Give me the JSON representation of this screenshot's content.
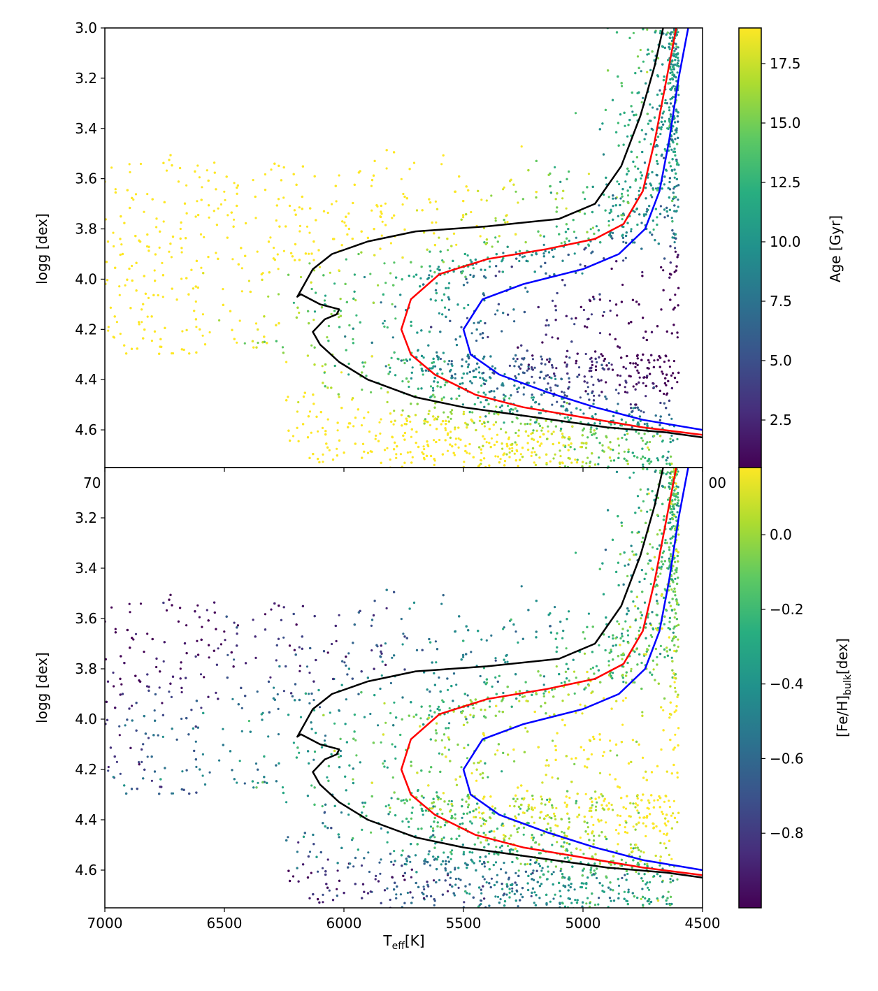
{
  "chart_data": [
    {
      "type": "scatter",
      "panel": "top",
      "title": "",
      "xlabel": "",
      "ylabel": "logg [dex]",
      "xlim": [
        7000,
        4500
      ],
      "ylim": [
        4.75,
        3.0
      ],
      "xticks": [
        7000,
        6500,
        6000,
        5500,
        5000,
        4500
      ],
      "xtick_labels_visible": [
        "70",
        "",
        "",
        "",
        "",
        "00"
      ],
      "yticks": [
        3.0,
        3.2,
        3.4,
        3.6,
        3.8,
        4.0,
        4.2,
        4.4,
        4.6
      ],
      "ytick_labels": [
        "3.0",
        "3.2",
        "3.4",
        "3.6",
        "3.8",
        "4.0",
        "4.2",
        "4.4",
        "4.6"
      ],
      "colorbar": {
        "label": "Age [Gyr]",
        "range": [
          0.5,
          19.0
        ],
        "ticks": [
          2.5,
          5.0,
          7.5,
          10.0,
          12.5,
          15.0,
          17.5
        ],
        "tick_labels": [
          "2.5",
          "5.0",
          "7.5",
          "10.0",
          "12.5",
          "15.0",
          "17.5"
        ],
        "colormap": "viridis"
      },
      "scatter_description_colors": {
        "young": "#440154",
        "old": "#fde725"
      }
    },
    {
      "type": "scatter",
      "panel": "bottom",
      "title": "",
      "xlabel": "T_eff[K]",
      "ylabel": "logg [dex]",
      "xlim": [
        7000,
        4500
      ],
      "ylim": [
        4.75,
        3.0
      ],
      "xticks": [
        7000,
        6500,
        6000,
        5500,
        5000,
        4500
      ],
      "xtick_labels": [
        "7000",
        "6500",
        "6000",
        "5500",
        "5000",
        "4500"
      ],
      "yticks": [
        3.2,
        3.4,
        3.6,
        3.8,
        4.0,
        4.2,
        4.4,
        4.6
      ],
      "ytick_labels": [
        "3.2",
        "3.4",
        "3.6",
        "3.8",
        "4.0",
        "4.2",
        "4.4",
        "4.6"
      ],
      "colorbar": {
        "label": "[Fe/H]_bulk[dex]",
        "range": [
          -1.0,
          0.18
        ],
        "ticks": [
          -0.8,
          -0.6,
          -0.4,
          -0.2,
          0.0
        ],
        "tick_labels": [
          "−0.8",
          "−0.6",
          "−0.4",
          "−0.2",
          "0.0"
        ],
        "colormap": "viridis"
      }
    }
  ],
  "isochrones": [
    {
      "color": "#000000",
      "points": [
        [
          4665,
          3.0
        ],
        [
          4700,
          3.15
        ],
        [
          4760,
          3.35
        ],
        [
          4840,
          3.55
        ],
        [
          4950,
          3.7
        ],
        [
          5100,
          3.76
        ],
        [
          5400,
          3.79
        ],
        [
          5700,
          3.81
        ],
        [
          5900,
          3.85
        ],
        [
          6050,
          3.9
        ],
        [
          6130,
          3.96
        ],
        [
          6195,
          4.07
        ],
        [
          6180,
          4.06
        ],
        [
          6100,
          4.1
        ],
        [
          6020,
          4.12
        ],
        [
          6030,
          4.14
        ],
        [
          6080,
          4.16
        ],
        [
          6130,
          4.21
        ],
        [
          6100,
          4.26
        ],
        [
          6020,
          4.33
        ],
        [
          5900,
          4.4
        ],
        [
          5700,
          4.47
        ],
        [
          5500,
          4.51
        ],
        [
          5200,
          4.55
        ],
        [
          4900,
          4.59
        ],
        [
          4650,
          4.61
        ],
        [
          4500,
          4.63
        ]
      ]
    },
    {
      "color": "#ff0000",
      "points": [
        [
          4610,
          3.0
        ],
        [
          4650,
          3.2
        ],
        [
          4700,
          3.45
        ],
        [
          4750,
          3.65
        ],
        [
          4830,
          3.78
        ],
        [
          4950,
          3.84
        ],
        [
          5150,
          3.88
        ],
        [
          5400,
          3.92
        ],
        [
          5600,
          3.98
        ],
        [
          5720,
          4.08
        ],
        [
          5760,
          4.2
        ],
        [
          5720,
          4.3
        ],
        [
          5620,
          4.38
        ],
        [
          5450,
          4.46
        ],
        [
          5250,
          4.51
        ],
        [
          5000,
          4.55
        ],
        [
          4750,
          4.59
        ],
        [
          4500,
          4.62
        ]
      ]
    },
    {
      "color": "#0000ff",
      "points": [
        [
          4560,
          3.0
        ],
        [
          4600,
          3.2
        ],
        [
          4640,
          3.45
        ],
        [
          4680,
          3.65
        ],
        [
          4740,
          3.8
        ],
        [
          4850,
          3.9
        ],
        [
          5000,
          3.96
        ],
        [
          5250,
          4.02
        ],
        [
          5420,
          4.08
        ],
        [
          5500,
          4.2
        ],
        [
          5470,
          4.3
        ],
        [
          5350,
          4.38
        ],
        [
          5150,
          4.45
        ],
        [
          4950,
          4.51
        ],
        [
          4750,
          4.56
        ],
        [
          4500,
          4.6
        ]
      ]
    }
  ]
}
